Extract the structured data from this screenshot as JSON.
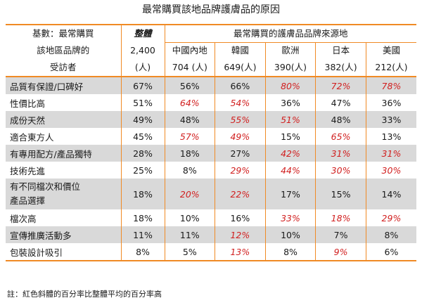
{
  "title": "最常購買該地品牌護膚品的原因",
  "note": "註：紅色斜體的百分率比整體平均的百分率高",
  "header": {
    "base_label": [
      "基數：最常購買",
      "該地區品牌的",
      "受訪者"
    ],
    "overall": [
      "整體",
      "2,400",
      "(人)"
    ],
    "source_title": "最常購買的護膚品品牌來源地",
    "regions": [
      {
        "name": "中國內地",
        "count": "704 (人)"
      },
      {
        "name": "韓國",
        "count": "649(人)"
      },
      {
        "name": "歐洲",
        "count": "390(人)"
      },
      {
        "name": "日本",
        "count": "382(人)"
      },
      {
        "name": "美國",
        "count": "212(人)"
      }
    ]
  },
  "chart_data": {
    "type": "table",
    "title": "最常購買該地品牌護膚品的原因",
    "columns": [
      "整體",
      "中國內地",
      "韓國",
      "歐洲",
      "日本",
      "美國"
    ],
    "highlight_color": "#d11f1f",
    "row_shade_color": "#d9d9d9",
    "accent_color": "#f08a24",
    "rows": [
      {
        "label": [
          "品質有保證/口碑好"
        ],
        "values": [
          "67%",
          "56%",
          "66%",
          "80%",
          "72%",
          "78%"
        ],
        "highlight": [
          false,
          false,
          false,
          true,
          true,
          true
        ]
      },
      {
        "label": [
          "性價比高"
        ],
        "values": [
          "51%",
          "64%",
          "54%",
          "36%",
          "47%",
          "36%"
        ],
        "highlight": [
          false,
          true,
          true,
          false,
          false,
          false
        ]
      },
      {
        "label": [
          "成份天然"
        ],
        "values": [
          "49%",
          "48%",
          "55%",
          "51%",
          "48%",
          "33%"
        ],
        "highlight": [
          false,
          false,
          true,
          true,
          false,
          false
        ]
      },
      {
        "label": [
          "適合東方人"
        ],
        "values": [
          "45%",
          "57%",
          "49%",
          "15%",
          "65%",
          "13%"
        ],
        "highlight": [
          false,
          true,
          true,
          false,
          true,
          false
        ]
      },
      {
        "label": [
          "有專用配方/產品獨特"
        ],
        "values": [
          "28%",
          "18%",
          "27%",
          "42%",
          "31%",
          "31%"
        ],
        "highlight": [
          false,
          false,
          false,
          true,
          true,
          true
        ]
      },
      {
        "label": [
          "技術先進"
        ],
        "values": [
          "25%",
          "8%",
          "29%",
          "44%",
          "30%",
          "30%"
        ],
        "highlight": [
          false,
          false,
          true,
          true,
          true,
          true
        ]
      },
      {
        "label": [
          "有不同檔次和價位",
          "產品選擇"
        ],
        "values": [
          "18%",
          "20%",
          "22%",
          "17%",
          "15%",
          "14%"
        ],
        "highlight": [
          false,
          true,
          true,
          false,
          false,
          false
        ]
      },
      {
        "label": [
          "檔次高"
        ],
        "values": [
          "18%",
          "10%",
          "16%",
          "33%",
          "18%",
          "29%"
        ],
        "highlight": [
          false,
          false,
          false,
          true,
          true,
          true
        ]
      },
      {
        "label": [
          "宣傳推廣活動多"
        ],
        "values": [
          "11%",
          "11%",
          "12%",
          "10%",
          "7%",
          "8%"
        ],
        "highlight": [
          false,
          false,
          true,
          false,
          false,
          false
        ]
      },
      {
        "label": [
          "包裝設計吸引"
        ],
        "values": [
          "8%",
          "5%",
          "13%",
          "8%",
          "9%",
          "6%"
        ],
        "highlight": [
          false,
          false,
          true,
          false,
          true,
          false
        ]
      }
    ]
  }
}
